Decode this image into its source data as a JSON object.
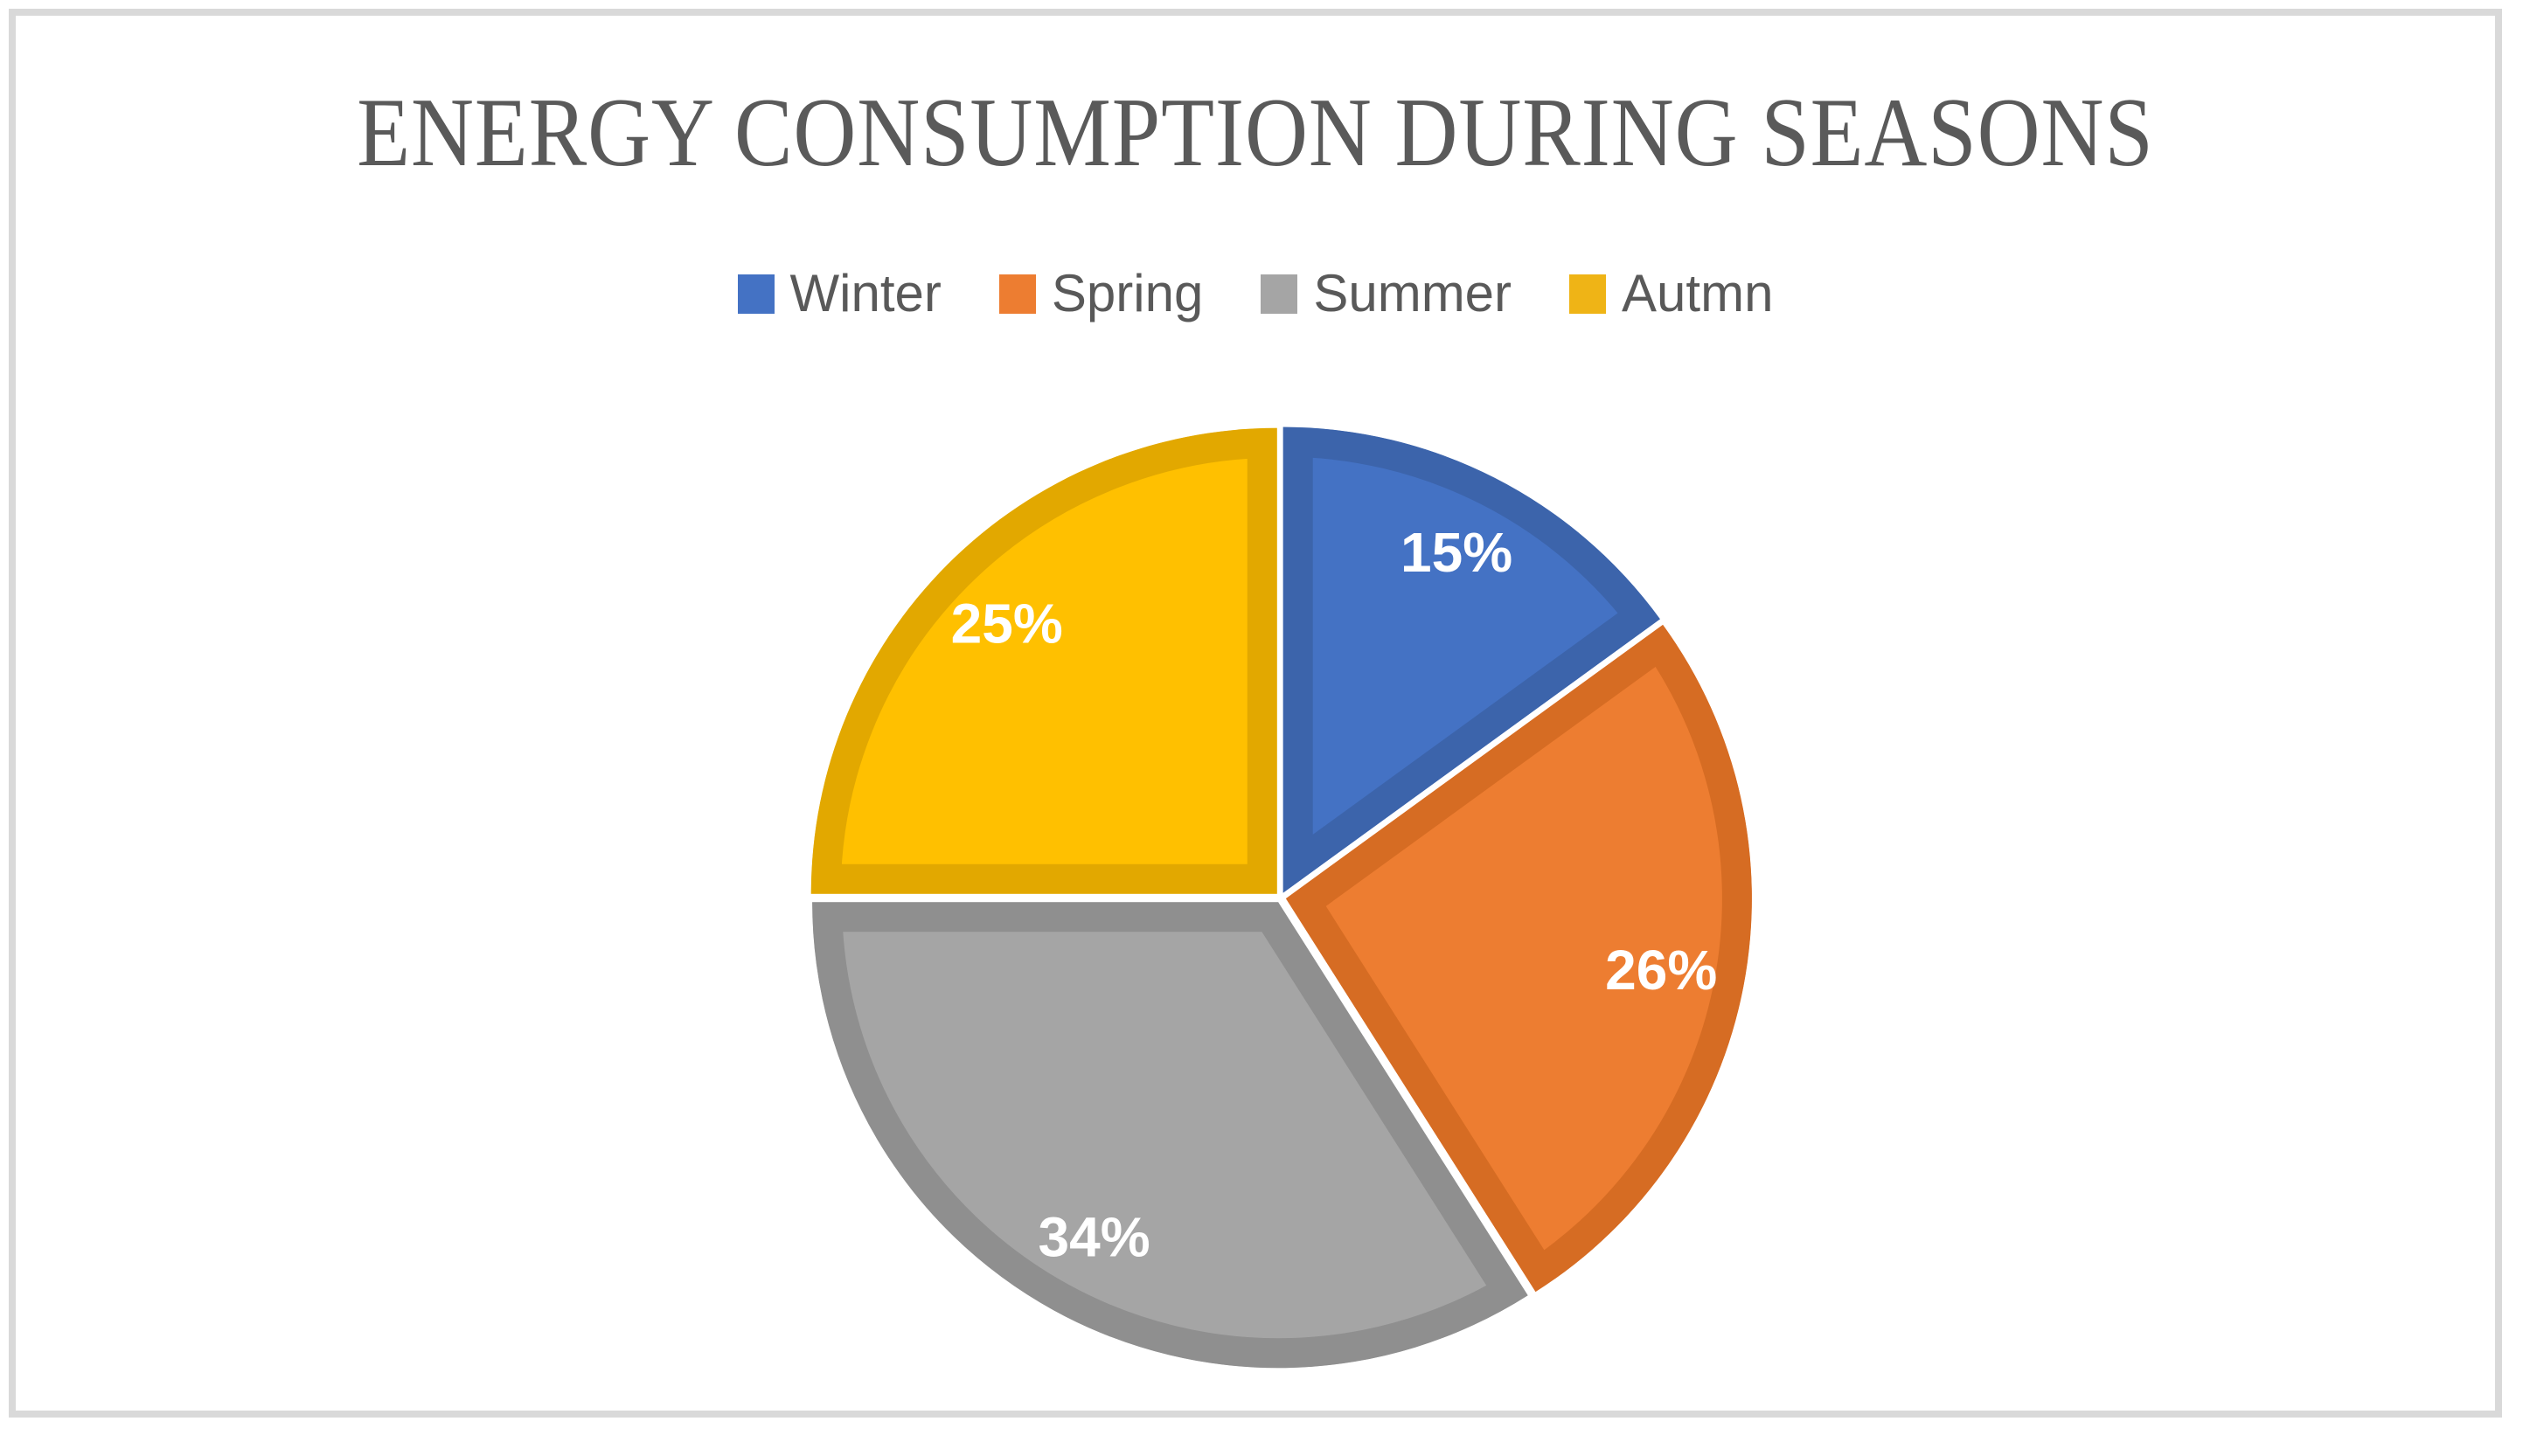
{
  "frame": {
    "border_color": "#d9d9d9",
    "background_color": "#ffffff"
  },
  "title": {
    "text": "ENERGY CONSUMPTION DURING SEASONS",
    "color": "#5a5a5a"
  },
  "legend": {
    "position": "top",
    "text_color": "#595959",
    "items": [
      {
        "label": "Winter",
        "color": "#4472C4"
      },
      {
        "label": "Spring",
        "color": "#ED7D31"
      },
      {
        "label": "Summer",
        "color": "#A5A5A5"
      },
      {
        "label": "Autmn",
        "color": "#EFB416"
      }
    ]
  },
  "chart_data": {
    "type": "pie",
    "title": "ENERGY CONSUMPTION DURING SEASONS",
    "categories": [
      "Winter",
      "Spring",
      "Summer",
      "Autmn"
    ],
    "values": [
      15,
      26,
      34,
      25
    ],
    "data_labels": [
      "15%",
      "26%",
      "34%",
      "25%"
    ],
    "slice_colors": [
      "#4472C4",
      "#ED7D31",
      "#A5A5A5",
      "#FFC000"
    ],
    "slice_border_colors": [
      "#3C64AB",
      "#D66C23",
      "#8F8F8F",
      "#E2A800"
    ],
    "data_label_color": "#ffffff",
    "total": 100,
    "start_angle_deg": 0,
    "direction": "clockwise",
    "legend_position": "top",
    "gridlines": false
  }
}
